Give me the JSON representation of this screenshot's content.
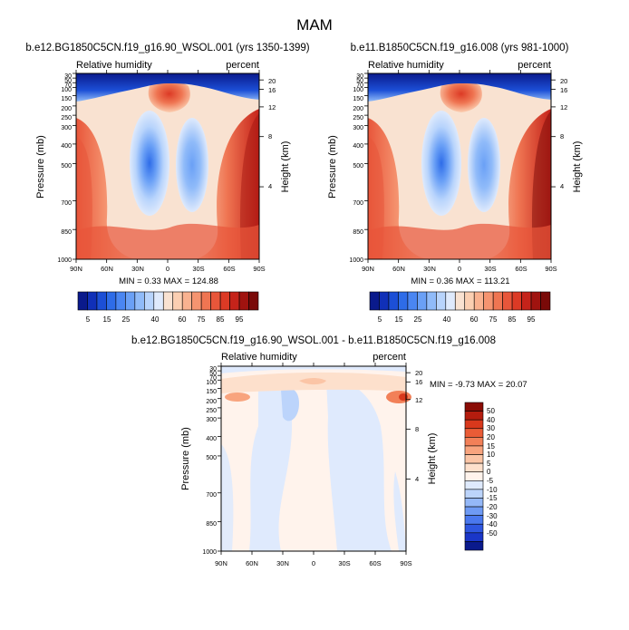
{
  "figure": {
    "title": "MAM"
  },
  "colors": {
    "contour_palette": [
      "#0a1a8c",
      "#1030b8",
      "#1c4fd6",
      "#2e6ce8",
      "#4a86f2",
      "#6aa0f6",
      "#90bbf9",
      "#b8d4fc",
      "#dfeafc",
      "#f9e2d1",
      "#fbcfb2",
      "#f9b290",
      "#f59470",
      "#ef7552",
      "#e8563a",
      "#dc3a25",
      "#c5231a",
      "#a0130f",
      "#7a0a08"
    ],
    "diff_palette": [
      "#0a1a8c",
      "#1a36c8",
      "#2e56e0",
      "#4a78ee",
      "#6e9af4",
      "#94b8f8",
      "#bcd4fb",
      "#dfeafd",
      "#fff3ec",
      "#fde0cc",
      "#fbc5a6",
      "#f8a47e",
      "#f28058",
      "#ea5c36",
      "#d8381c",
      "#b41c0e",
      "#8a0c05"
    ]
  },
  "chart_data": [
    {
      "type": "heatmap",
      "panel": "top-left",
      "title": "b.e12.BG1850C5CN.f19_g16.90_WSOL.001 (yrs 1350-1399)",
      "subtitle_left": "Relative humidity",
      "subtitle_right": "percent",
      "xlabel": "",
      "ylabel": "Pressure (mb)",
      "ylabel_right": "Height (km)",
      "x_ticks": [
        "90N",
        "60N",
        "30N",
        "0",
        "30S",
        "60S",
        "90S"
      ],
      "y_ticks": [
        "30",
        "50",
        "70",
        "100",
        "150",
        "200",
        "250",
        "300",
        "400",
        "500",
        "700",
        "850",
        "1000"
      ],
      "y_ticks_right": [
        "20",
        "16",
        "12",
        "8",
        "4"
      ],
      "min_max": "MIN =   0.33  MAX = 124.88",
      "colorbar_labels": [
        "5",
        "15",
        "25",
        "40",
        "60",
        "75",
        "85",
        "95"
      ]
    },
    {
      "type": "heatmap",
      "panel": "top-right",
      "title": "b.e11.B1850C5CN.f19_g16.008 (yrs 981-1000)",
      "subtitle_left": "Relative humidity",
      "subtitle_right": "percent",
      "xlabel": "",
      "ylabel": "Pressure (mb)",
      "ylabel_right": "Height (km)",
      "x_ticks": [
        "90N",
        "60N",
        "30N",
        "0",
        "30S",
        "60S",
        "90S"
      ],
      "y_ticks": [
        "30",
        "50",
        "70",
        "100",
        "150",
        "200",
        "250",
        "300",
        "400",
        "500",
        "700",
        "850",
        "1000"
      ],
      "y_ticks_right": [
        "20",
        "16",
        "12",
        "8",
        "4"
      ],
      "min_max": "MIN =   0.36  MAX = 113.21",
      "colorbar_labels": [
        "5",
        "15",
        "25",
        "40",
        "60",
        "75",
        "85",
        "95"
      ]
    },
    {
      "type": "heatmap",
      "panel": "bottom",
      "title": "b.e12.BG1850C5CN.f19_g16.90_WSOL.001 - b.e11.B1850C5CN.f19_g16.008",
      "subtitle_left": "Relative humidity",
      "subtitle_right": "percent",
      "xlabel": "",
      "ylabel": "Pressure (mb)",
      "ylabel_right": "Height (km)",
      "x_ticks": [
        "90N",
        "60N",
        "30N",
        "0",
        "30S",
        "60S",
        "90S"
      ],
      "y_ticks": [
        "30",
        "50",
        "70",
        "100",
        "150",
        "200",
        "250",
        "300",
        "400",
        "500",
        "700",
        "850",
        "1000"
      ],
      "y_ticks_right": [
        "20",
        "16",
        "12",
        "8",
        "4"
      ],
      "min_max": "MIN =  -9.73  MAX =  20.07",
      "colorbar_labels": [
        "50",
        "40",
        "30",
        "20",
        "15",
        "10",
        "5",
        "0",
        "-5",
        "-10",
        "-15",
        "-20",
        "-30",
        "-40",
        "-50"
      ]
    }
  ]
}
